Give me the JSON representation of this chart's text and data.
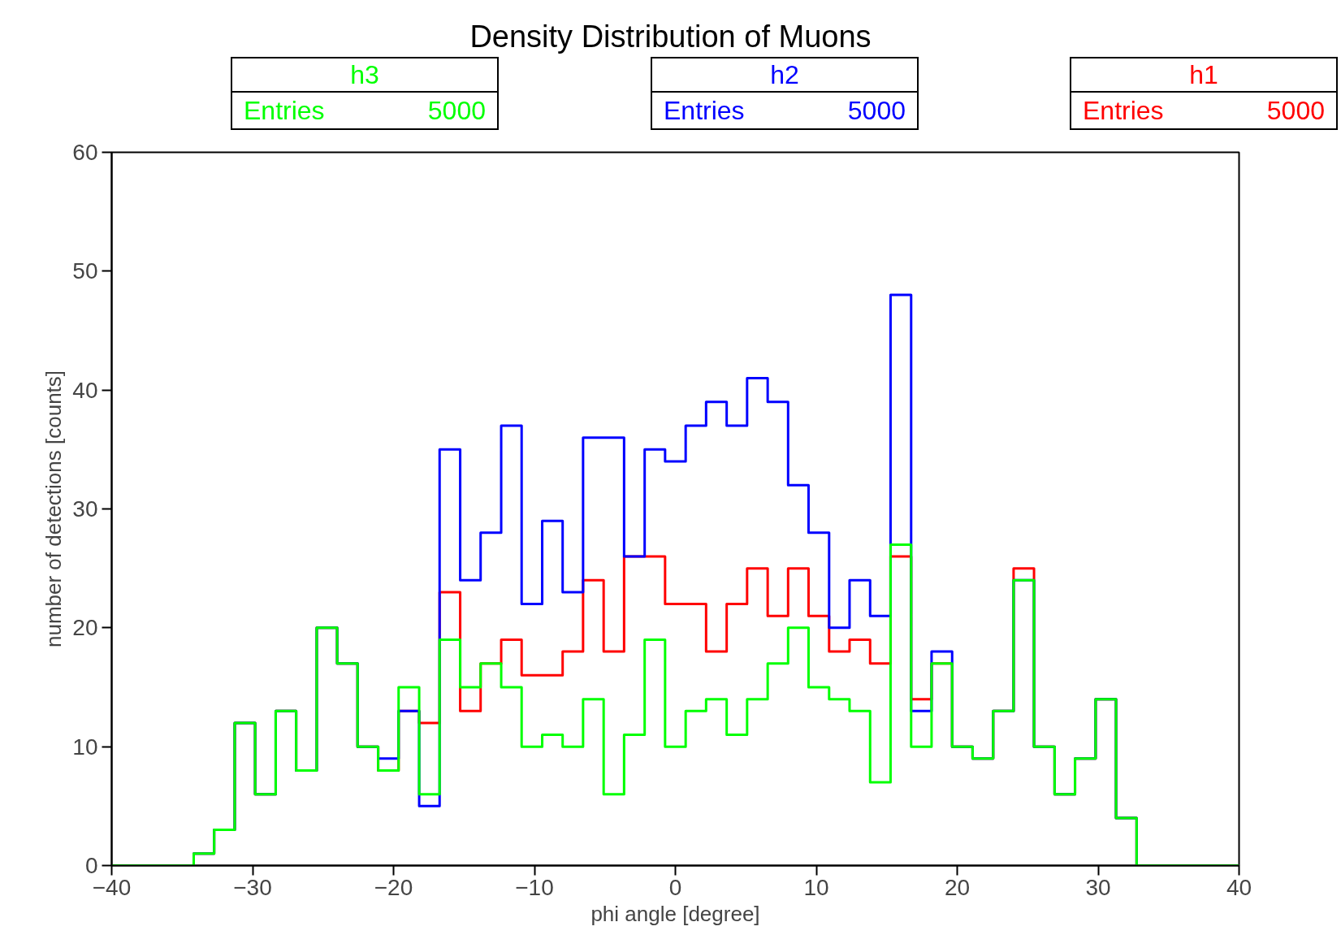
{
  "chart_data": {
    "type": "histogram",
    "title": "Density Distribution of Muons",
    "xlabel": "phi angle [degree]",
    "ylabel": "number of detections [counts]",
    "bins": [
      -40,
      -38.55,
      -37.09,
      -35.64,
      -34.18,
      -32.73,
      -31.27,
      -29.82,
      -28.36,
      -26.91,
      -25.45,
      -24,
      -22.55,
      -21.09,
      -19.64,
      -18.18,
      -16.73,
      -15.27,
      -13.82,
      -12.36,
      -10.91,
      -9.45,
      -8,
      -6.55,
      -5.09,
      -3.64,
      -2.18,
      -0.73,
      0.73,
      2.18,
      3.64,
      5.09,
      6.55,
      8,
      9.45,
      10.91,
      12.36,
      13.82,
      15.27,
      16.73,
      18.18,
      19.64,
      21.09,
      22.55,
      24,
      25.45,
      26.91,
      28.36,
      29.82,
      31.27,
      32.73,
      34.18,
      35.64,
      37.09,
      38.55,
      40
    ],
    "series": [
      {
        "name": "h1",
        "color": "#ff0000",
        "values": [
          0,
          0,
          0,
          0,
          1,
          3,
          12,
          6,
          13,
          8,
          20,
          17,
          10,
          8,
          13,
          12,
          23,
          13,
          17,
          19,
          16,
          16,
          18,
          24,
          18,
          26,
          26,
          22,
          22,
          18,
          22,
          25,
          21,
          25,
          21,
          18,
          19,
          17,
          26,
          14,
          17,
          10,
          9,
          13,
          25,
          10,
          6,
          9,
          14,
          4,
          0,
          0,
          0,
          0,
          0
        ]
      },
      {
        "name": "h2",
        "color": "#0000ff",
        "values": [
          0,
          0,
          0,
          0,
          1,
          3,
          12,
          6,
          13,
          8,
          20,
          17,
          10,
          9,
          13,
          5,
          35,
          24,
          28,
          37,
          22,
          29,
          23,
          36,
          36,
          26,
          35,
          34,
          37,
          39,
          37,
          41,
          39,
          32,
          28,
          20,
          24,
          21,
          48,
          13,
          18,
          10,
          9,
          13,
          24,
          10,
          6,
          9,
          14,
          4,
          0,
          0,
          0,
          0,
          0
        ]
      },
      {
        "name": "h3",
        "color": "#00ff00",
        "values": [
          0,
          0,
          0,
          0,
          1,
          3,
          12,
          6,
          13,
          8,
          20,
          17,
          10,
          8,
          15,
          6,
          19,
          15,
          17,
          15,
          10,
          11,
          10,
          14,
          6,
          11,
          19,
          10,
          13,
          14,
          11,
          14,
          17,
          20,
          15,
          14,
          13,
          7,
          27,
          10,
          17,
          10,
          9,
          13,
          24,
          10,
          6,
          9,
          14,
          4,
          0,
          0,
          0,
          0,
          0
        ]
      }
    ],
    "annotations": [
      "Entries 5000",
      "Entries 5000",
      "Entries 5000"
    ],
    "grid": false,
    "xlim": [
      -40,
      40
    ],
    "ylim": [
      0,
      60
    ],
    "xticks": [
      -40,
      -30,
      -20,
      -10,
      0,
      10,
      20,
      30,
      40
    ],
    "yticks": [
      0,
      10,
      20,
      30,
      40,
      50,
      60
    ]
  }
}
